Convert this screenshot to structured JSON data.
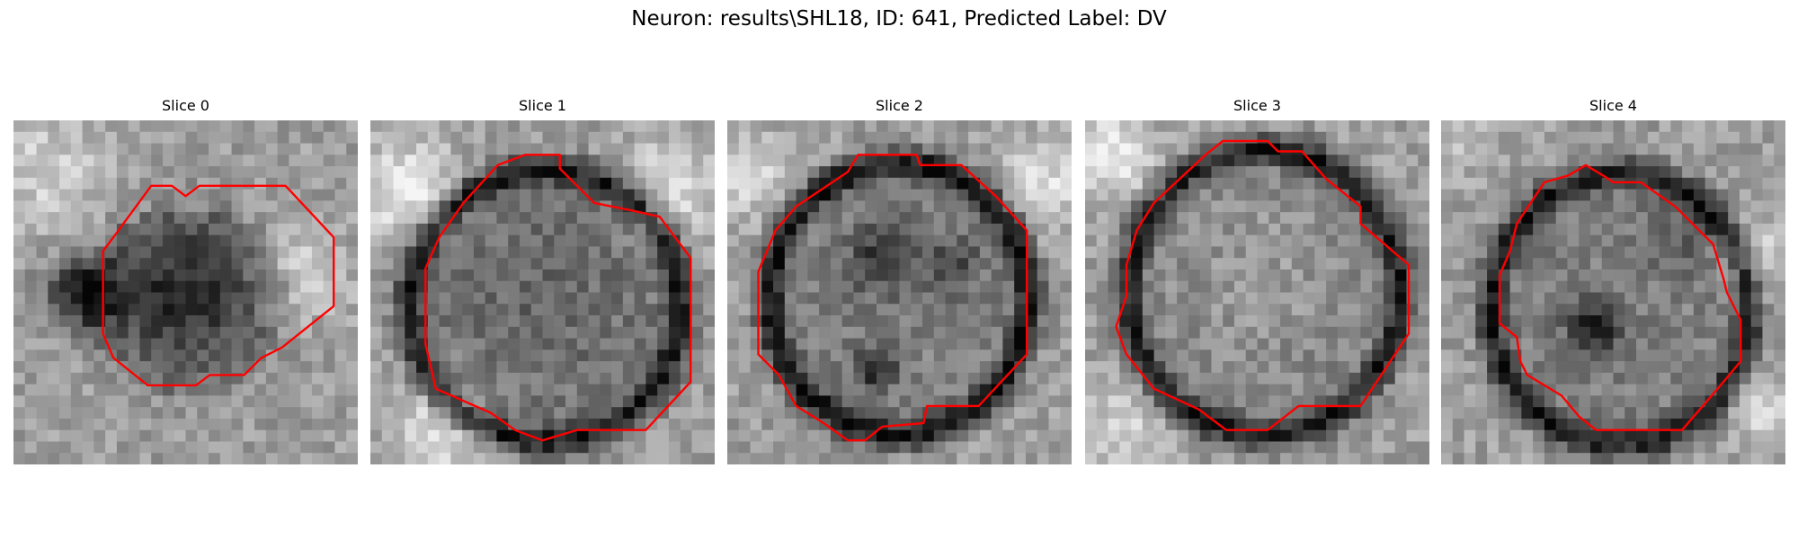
{
  "figure": {
    "title": "Neuron: results\\SHL18, ID: 641, Predicted Label: DV",
    "panels": [
      {
        "title": "Slice 0",
        "seed": 11,
        "contour_color": "#ff0000"
      },
      {
        "title": "Slice 1",
        "seed": 23,
        "contour_color": "#ff0000"
      },
      {
        "title": "Slice 2",
        "seed": 37,
        "contour_color": "#ff0000"
      },
      {
        "title": "Slice 3",
        "seed": 41,
        "contour_color": "#ff0000"
      },
      {
        "title": "Slice 4",
        "seed": 59,
        "contour_color": "#ff0000"
      }
    ]
  }
}
